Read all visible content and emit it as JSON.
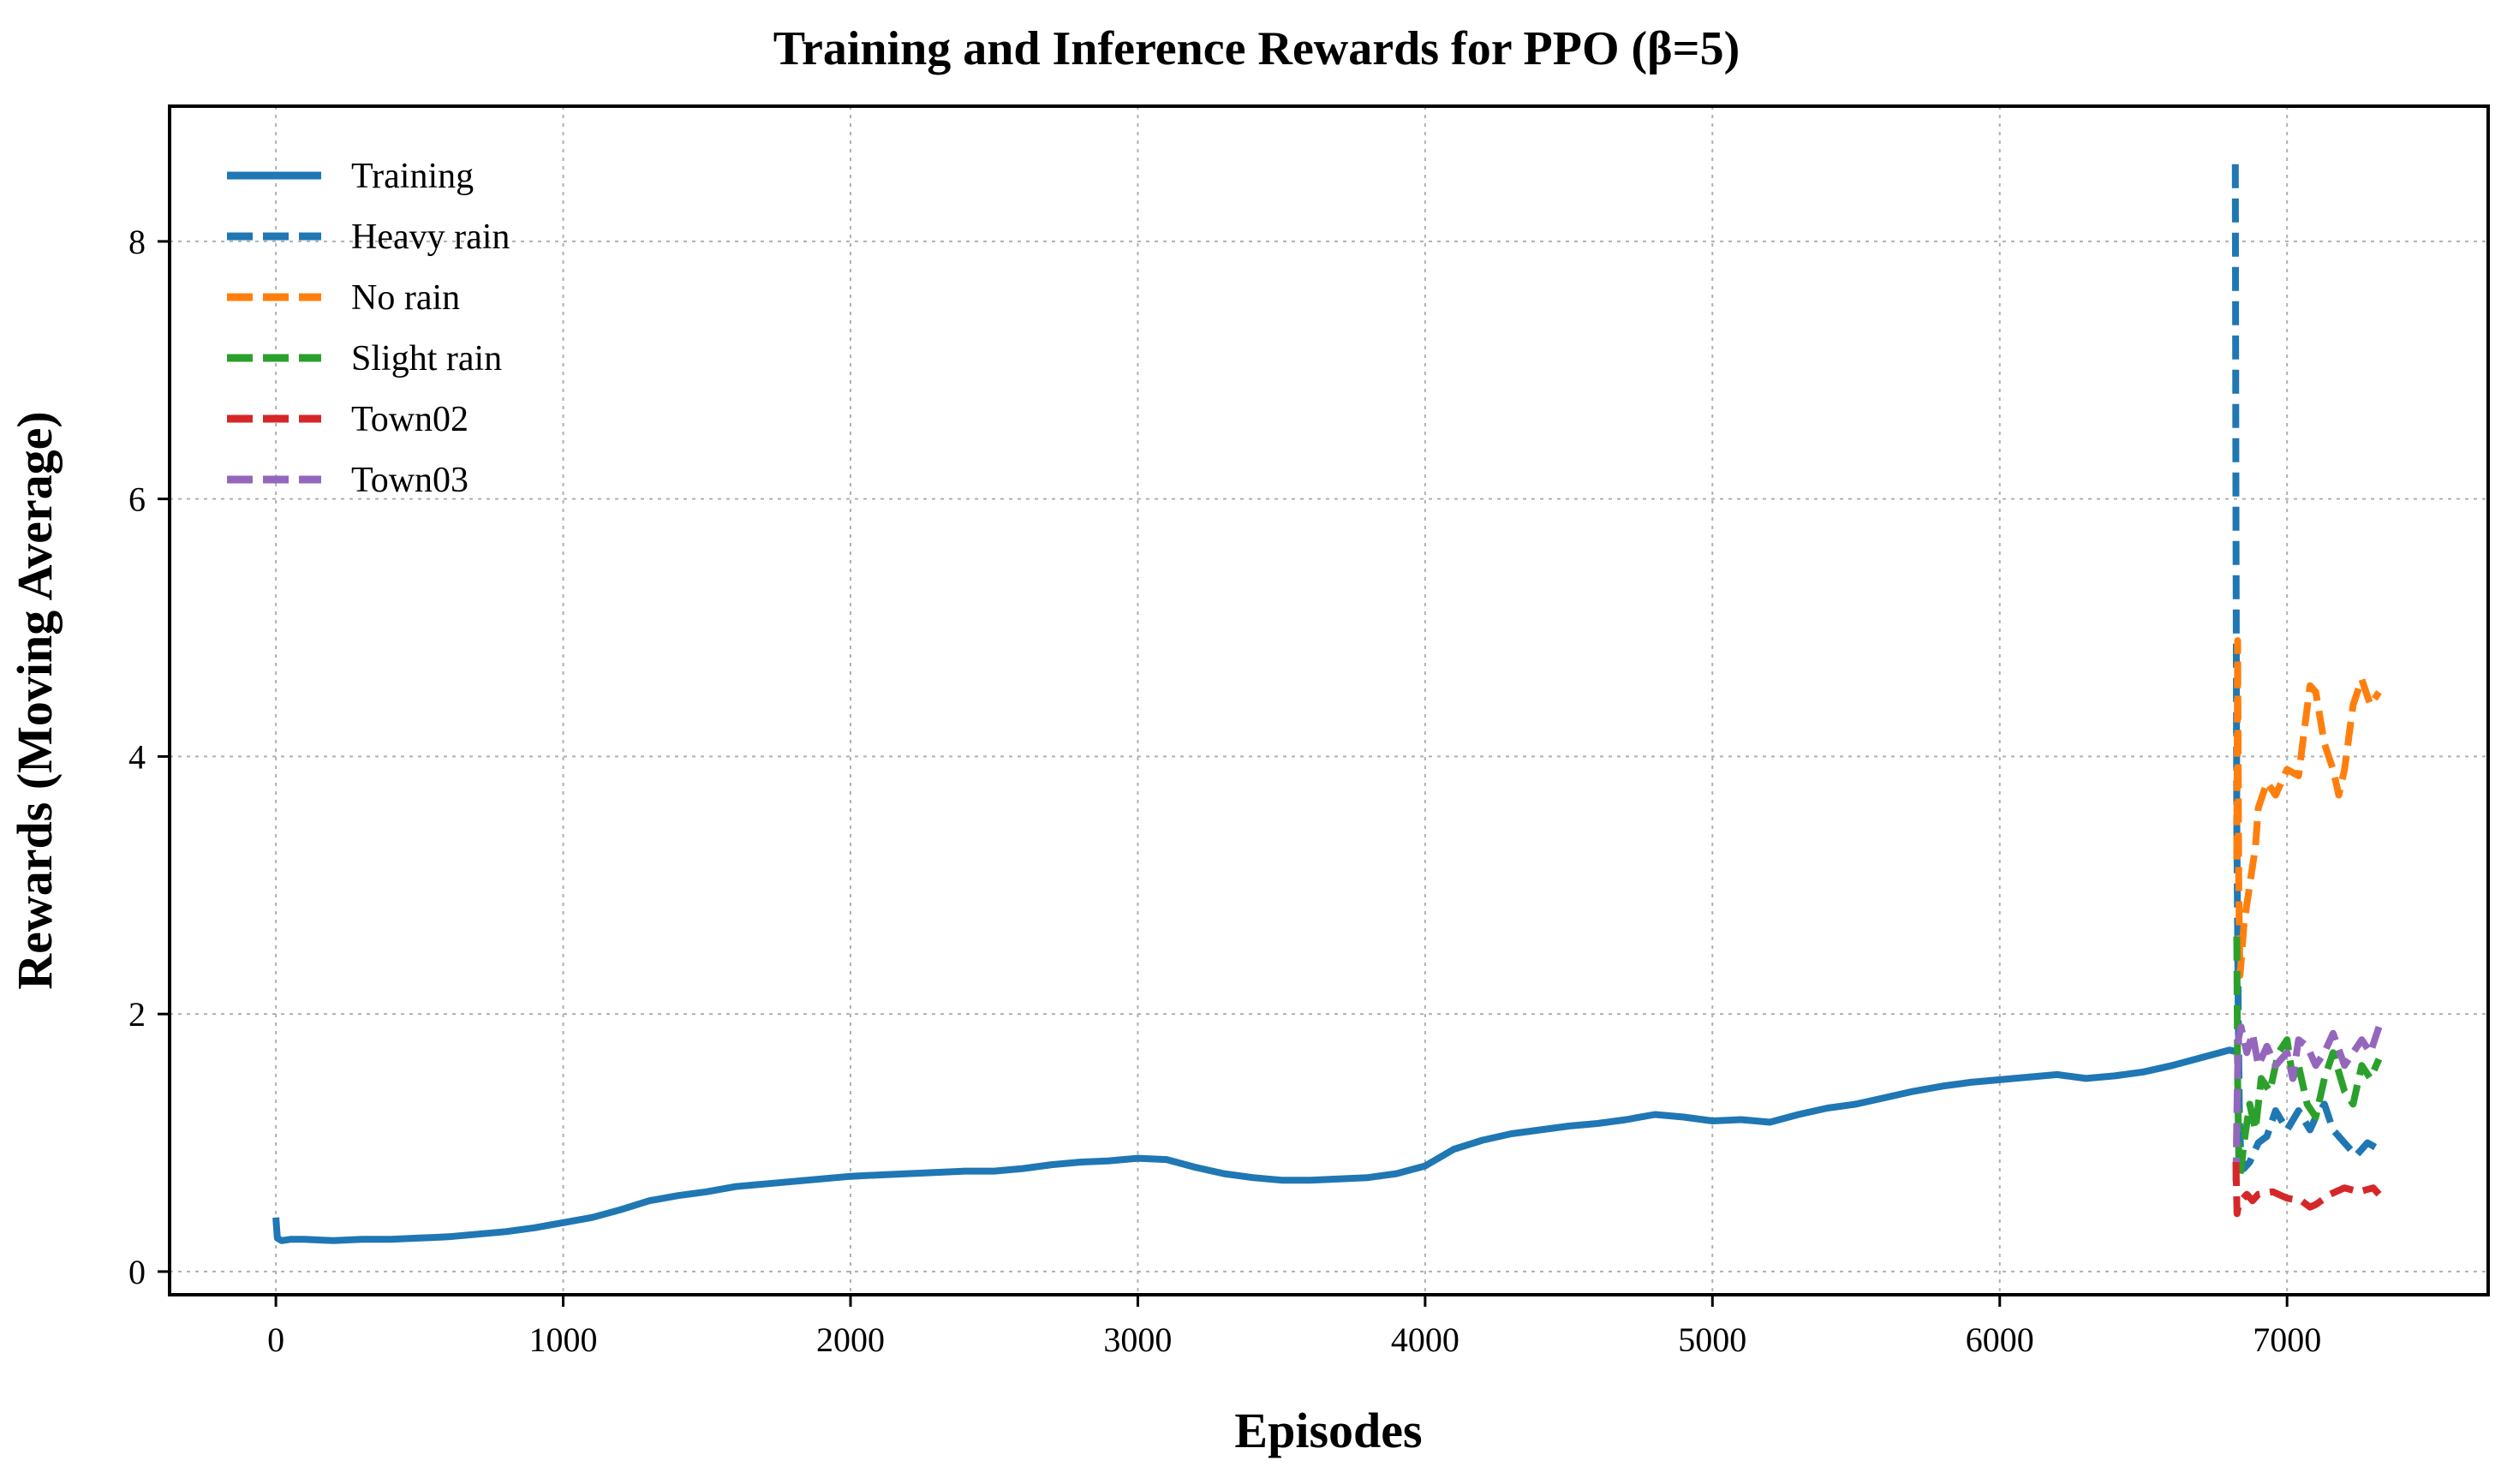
{
  "chart_data": {
    "type": "line",
    "title": "Training and Inference Rewards for PPO (β=5)",
    "xlabel": "Episodes",
    "ylabel": "Rewards (Moving Average)",
    "xlim": [
      -370,
      7700
    ],
    "ylim": [
      -0.18,
      9.05
    ],
    "xticks": [
      0,
      1000,
      2000,
      3000,
      4000,
      5000,
      6000,
      7000
    ],
    "yticks": [
      0,
      2,
      4,
      6,
      8
    ],
    "grid": true,
    "legend_position": "upper-left",
    "series": [
      {
        "name": "Training",
        "color": "#1f77b4",
        "style": "solid",
        "x": [
          0,
          5,
          20,
          50,
          100,
          200,
          300,
          400,
          500,
          600,
          700,
          800,
          900,
          1000,
          1100,
          1200,
          1300,
          1400,
          1500,
          1600,
          1700,
          1800,
          1900,
          2000,
          2100,
          2200,
          2300,
          2400,
          2500,
          2600,
          2700,
          2800,
          2900,
          3000,
          3100,
          3200,
          3300,
          3400,
          3500,
          3600,
          3700,
          3800,
          3900,
          4000,
          4100,
          4200,
          4300,
          4400,
          4500,
          4600,
          4700,
          4800,
          4900,
          5000,
          5100,
          5200,
          5300,
          5400,
          5500,
          5600,
          5700,
          5800,
          5900,
          6000,
          6100,
          6200,
          6300,
          6400,
          6500,
          6600,
          6700,
          6800,
          6820
        ],
        "y": [
          0.42,
          0.26,
          0.24,
          0.25,
          0.25,
          0.24,
          0.25,
          0.25,
          0.26,
          0.27,
          0.29,
          0.31,
          0.34,
          0.38,
          0.42,
          0.48,
          0.55,
          0.59,
          0.62,
          0.66,
          0.68,
          0.7,
          0.72,
          0.74,
          0.75,
          0.76,
          0.77,
          0.78,
          0.78,
          0.8,
          0.83,
          0.85,
          0.86,
          0.88,
          0.87,
          0.81,
          0.76,
          0.73,
          0.71,
          0.71,
          0.72,
          0.73,
          0.76,
          0.82,
          0.95,
          1.02,
          1.07,
          1.1,
          1.13,
          1.15,
          1.18,
          1.22,
          1.2,
          1.17,
          1.18,
          1.16,
          1.22,
          1.27,
          1.3,
          1.35,
          1.4,
          1.44,
          1.47,
          1.49,
          1.51,
          1.53,
          1.5,
          1.52,
          1.55,
          1.6,
          1.66,
          1.72,
          1.71
        ]
      },
      {
        "name": "Heavy rain",
        "color": "#1f77b4",
        "style": "dashed",
        "x": [
          6820,
          6822,
          6825,
          6830,
          6835,
          6840,
          6850,
          6870,
          6900,
          6930,
          6960,
          7000,
          7040,
          7080,
          7100,
          7130,
          7160,
          7200,
          7240,
          7280,
          7320
        ],
        "y": [
          8.6,
          6.0,
          3.5,
          2.0,
          1.1,
          0.9,
          0.8,
          0.85,
          1.0,
          1.05,
          1.25,
          1.1,
          1.25,
          1.1,
          1.2,
          1.3,
          1.1,
          1.0,
          0.9,
          1.0,
          0.95
        ]
      },
      {
        "name": "No rain",
        "color": "#ff7f0e",
        "style": "dashed",
        "x": [
          6825,
          6828,
          6832,
          6836,
          6840,
          6850,
          6870,
          6890,
          6900,
          6930,
          6960,
          7000,
          7040,
          7060,
          7080,
          7100,
          7130,
          7160,
          7180,
          7200,
          7230,
          7260,
          7290,
          7320
        ],
        "y": [
          3.2,
          4.9,
          3.0,
          2.3,
          2.4,
          2.7,
          3.0,
          3.3,
          3.6,
          3.8,
          3.7,
          3.9,
          3.85,
          4.2,
          4.55,
          4.5,
          4.1,
          3.9,
          3.7,
          3.9,
          4.4,
          4.6,
          4.4,
          4.5
        ]
      },
      {
        "name": "Slight rain",
        "color": "#2ca02c",
        "style": "dashed",
        "x": [
          6825,
          6828,
          6832,
          6836,
          6840,
          6850,
          6870,
          6890,
          6910,
          6940,
          6970,
          7000,
          7020,
          7040,
          7070,
          7100,
          7130,
          7160,
          7200,
          7230,
          7260,
          7290,
          7320
        ],
        "y": [
          2.6,
          1.5,
          0.9,
          0.75,
          0.8,
          1.0,
          1.3,
          1.1,
          1.5,
          1.4,
          1.7,
          1.8,
          1.5,
          1.6,
          1.3,
          1.2,
          1.5,
          1.7,
          1.4,
          1.3,
          1.6,
          1.5,
          1.65
        ]
      },
      {
        "name": "Town02",
        "color": "#d62728",
        "style": "dashed",
        "x": [
          6822,
          6826,
          6830,
          6840,
          6860,
          6880,
          6900,
          6950,
          7000,
          7050,
          7080,
          7100,
          7150,
          7200,
          7250,
          7300,
          7320
        ],
        "y": [
          0.85,
          0.45,
          0.5,
          0.55,
          0.6,
          0.55,
          0.6,
          0.62,
          0.57,
          0.55,
          0.5,
          0.52,
          0.6,
          0.65,
          0.62,
          0.65,
          0.6
        ]
      },
      {
        "name": "Town03",
        "color": "#9467bd",
        "style": "dashed",
        "x": [
          6822,
          6826,
          6830,
          6840,
          6860,
          6880,
          6900,
          6930,
          6960,
          7000,
          7020,
          7040,
          7070,
          7100,
          7130,
          7160,
          7200,
          7230,
          7260,
          7290,
          7320
        ],
        "y": [
          0.7,
          1.3,
          1.8,
          1.9,
          1.7,
          1.85,
          1.6,
          1.75,
          1.6,
          1.7,
          1.5,
          1.8,
          1.75,
          1.6,
          1.7,
          1.85,
          1.6,
          1.7,
          1.8,
          1.7,
          1.9
        ]
      }
    ]
  }
}
